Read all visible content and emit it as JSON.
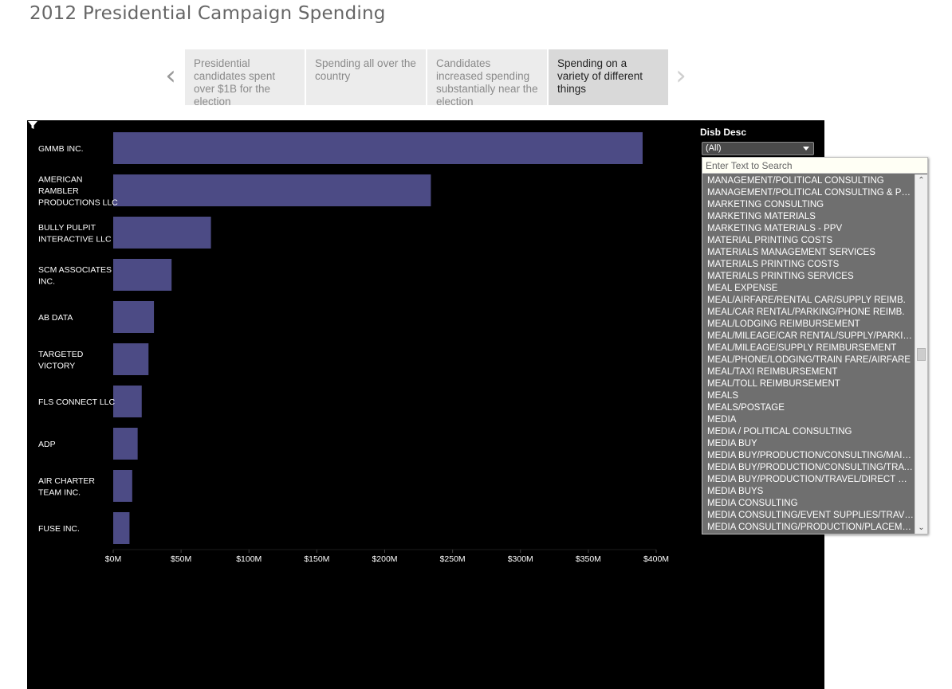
{
  "page": {
    "title": "2012 Presidential Campaign Spending"
  },
  "story": {
    "points": [
      {
        "label": "Presidential candidates spent over $1B for the election"
      },
      {
        "label": "Spending all over the country"
      },
      {
        "label": "Candidates increased spending substantially near the election"
      },
      {
        "label": "Spending on a variety of different things"
      }
    ],
    "active_index": 3
  },
  "filter": {
    "title": "Disb Desc",
    "selected": "(All)",
    "search_placeholder": "Enter Text to Search",
    "scroll_position": 0.5,
    "items": [
      "MANAGEMENT/POLITICAL CONSULTING",
      "MANAGEMENT/POLITICAL CONSULTING & PRI...",
      "MARKETING CONSULTING",
      "MARKETING MATERIALS",
      "MARKETING MATERIALS - PPV",
      "MATERIAL PRINTING COSTS",
      "MATERIALS MANAGEMENT SERVICES",
      "MATERIALS PRINTING COSTS",
      "MATERIALS PRINTING SERVICES",
      "MEAL EXPENSE",
      "MEAL/AIRFARE/RENTAL CAR/SUPPLY REIMB.",
      "MEAL/CAR RENTAL/PARKING/PHONE REIMB.",
      "MEAL/LODGING REIMBURSEMENT",
      "MEAL/MILEAGE/CAR RENTAL/SUPPLY/PARKING",
      "MEAL/MILEAGE/SUPPLY REIMBURSEMENT",
      "MEAL/PHONE/LODGING/TRAIN FARE/AIRFARE",
      "MEAL/TAXI REIMBURSEMENT",
      "MEAL/TOLL REIMBURSEMENT",
      "MEALS",
      "MEALS/POSTAGE",
      "MEDIA",
      "MEDIA / POLITICAL CONSULTING",
      "MEDIA BUY",
      "MEDIA BUY/PRODUCTION/CONSULTING/MAILI...",
      "MEDIA BUY/PRODUCTION/CONSULTING/TRAV...",
      "MEDIA BUY/PRODUCTION/TRAVEL/DIRECT MAIL",
      "MEDIA BUYS",
      "MEDIA CONSULTING",
      "MEDIA CONSULTING/EVENT SUPPLIES/TRAVEL",
      "MEDIA CONSULTING/PRODUCTION/PLACEME..."
    ]
  },
  "colors": {
    "bar": "#4c4b85",
    "background": "#000000",
    "text": "#ffffff",
    "active_story": "#d9d9d9",
    "inactive_story": "#ececec"
  },
  "chart_data": {
    "type": "bar",
    "orientation": "horizontal",
    "categories": [
      [
        "GMMB INC."
      ],
      [
        "AMERICAN",
        "RAMBLER",
        "PRODUCTIONS LLC"
      ],
      [
        "BULLY PULPIT",
        "INTERACTIVE LLC"
      ],
      [
        "SCM ASSOCIATES",
        "INC."
      ],
      [
        "AB DATA"
      ],
      [
        "TARGETED",
        "VICTORY"
      ],
      [
        "FLS CONNECT LLC"
      ],
      [
        "ADP"
      ],
      [
        "AIR CHARTER",
        "TEAM INC."
      ],
      [
        "FUSE INC."
      ]
    ],
    "values": [
      390,
      234,
      72,
      43,
      30,
      26,
      21,
      18,
      14,
      12
    ],
    "value_unit": "millions USD",
    "xlim": [
      0,
      400
    ],
    "xticks": [
      {
        "value": 0,
        "label": "$0M"
      },
      {
        "value": 50,
        "label": "$50M"
      },
      {
        "value": 100,
        "label": "$100M"
      },
      {
        "value": 150,
        "label": "$150M"
      },
      {
        "value": 200,
        "label": "$200M"
      },
      {
        "value": 250,
        "label": "$250M"
      },
      {
        "value": 300,
        "label": "$300M"
      },
      {
        "value": 350,
        "label": "$350M"
      },
      {
        "value": 400,
        "label": "$400M"
      }
    ],
    "grid": false,
    "title": "",
    "xlabel": "",
    "ylabel": ""
  }
}
